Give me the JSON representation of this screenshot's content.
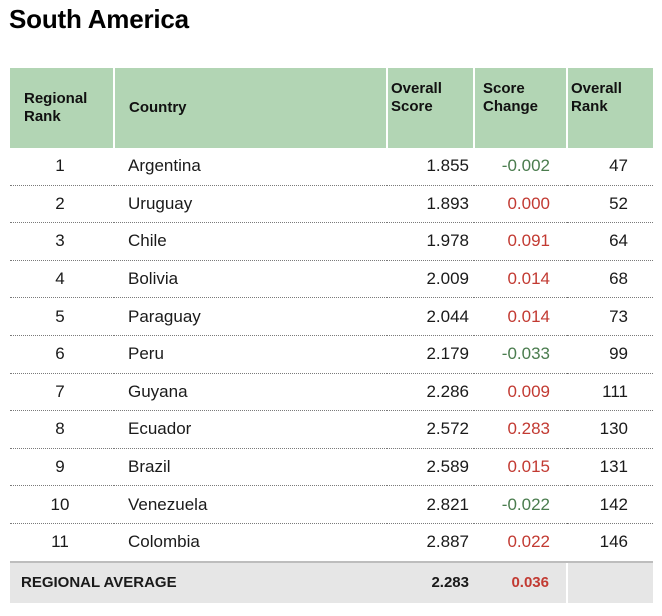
{
  "title": "South America",
  "headers": {
    "rank": [
      "Regional",
      "Rank"
    ],
    "country": "Country",
    "score": [
      "Overall",
      "Score"
    ],
    "change": [
      "Score",
      "Change"
    ],
    "overall_rank": [
      "Overall",
      "Rank"
    ]
  },
  "rows": [
    {
      "rank": "1",
      "country": "Argentina",
      "score": "1.855",
      "change": "-0.002",
      "overall_rank": "47"
    },
    {
      "rank": "2",
      "country": "Uruguay",
      "score": "1.893",
      "change": "0.000",
      "overall_rank": "52"
    },
    {
      "rank": "3",
      "country": "Chile",
      "score": "1.978",
      "change": "0.091",
      "overall_rank": "64"
    },
    {
      "rank": "4",
      "country": "Bolivia",
      "score": "2.009",
      "change": "0.014",
      "overall_rank": "68"
    },
    {
      "rank": "5",
      "country": "Paraguay",
      "score": "2.044",
      "change": "0.014",
      "overall_rank": "73"
    },
    {
      "rank": "6",
      "country": "Peru",
      "score": "2.179",
      "change": "-0.033",
      "overall_rank": "99"
    },
    {
      "rank": "7",
      "country": "Guyana",
      "score": "2.286",
      "change": "0.009",
      "overall_rank": "111"
    },
    {
      "rank": "8",
      "country": "Ecuador",
      "score": "2.572",
      "change": "0.283",
      "overall_rank": "130"
    },
    {
      "rank": "9",
      "country": "Brazil",
      "score": "2.589",
      "change": "0.015",
      "overall_rank": "131"
    },
    {
      "rank": "10",
      "country": "Venezuela",
      "score": "2.821",
      "change": "-0.022",
      "overall_rank": "142"
    },
    {
      "rank": "11",
      "country": "Colombia",
      "score": "2.887",
      "change": "0.022",
      "overall_rank": "146"
    }
  ],
  "average": {
    "label": "REGIONAL AVERAGE",
    "score": "2.283",
    "change": "0.036"
  },
  "colors": {
    "header_bg": "#b2d5b4",
    "negative_change": "#4a7c4e",
    "positive_change": "#c23a32",
    "footer_bg": "#e6e6e6"
  }
}
